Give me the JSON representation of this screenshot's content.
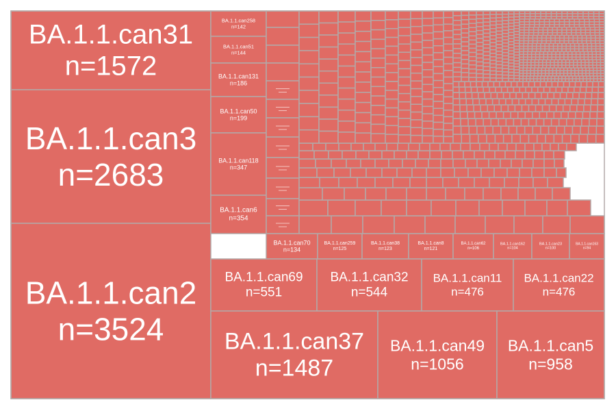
{
  "chart_data": {
    "type": "treemap",
    "title": "",
    "colors": {
      "tile": "#e06b64",
      "border": "#b2a9a8",
      "label": "#ffffff"
    },
    "tiles": [
      {
        "label": "BA.1.1.can31",
        "n": "n=1572",
        "value": 1572
      },
      {
        "label": "BA.1.1.can3",
        "n": "n=2683",
        "value": 2683
      },
      {
        "label": "BA.1.1.can2",
        "n": "n=3524",
        "value": 3524
      },
      {
        "label": "BA.1.1.can258",
        "n": "n=142",
        "value": 142
      },
      {
        "label": "BA.1.1.can51",
        "n": "n=144",
        "value": 144
      },
      {
        "label": "BA.1.1.can131",
        "n": "n=186",
        "value": 186
      },
      {
        "label": "BA.1.1.can50",
        "n": "n=199",
        "value": 199
      },
      {
        "label": "BA.1.1.can118",
        "n": "n=347",
        "value": 347
      },
      {
        "label": "BA.1.1.can6",
        "n": "n=354",
        "value": 354
      },
      {
        "label": "BA.1.1.can70",
        "n": "n=134",
        "value": 134
      },
      {
        "label": "BA.1.1.can259",
        "n": "n=125",
        "value": 125
      },
      {
        "label": "BA.1.1.can38",
        "n": "n=123",
        "value": 123
      },
      {
        "label": "BA.1.1.can8",
        "n": "n=121",
        "value": 121
      },
      {
        "label": "BA.1.1.can62",
        "n": "n=106",
        "value": 106
      },
      {
        "label": "BA.1.1.can162",
        "n": "n=104",
        "value": 104
      },
      {
        "label": "BA.1.1.can23",
        "n": "n=100",
        "value": 100
      },
      {
        "label": "BA.1.1.can163",
        "n": "n=94",
        "value": 94
      },
      {
        "label": "BA.1.1.can69",
        "n": "n=551",
        "value": 551
      },
      {
        "label": "BA.1.1.can32",
        "n": "n=544",
        "value": 544
      },
      {
        "label": "BA.1.1.can11",
        "n": "n=476",
        "value": 476
      },
      {
        "label": "BA.1.1.can22",
        "n": "n=476",
        "value": 476
      },
      {
        "label": "BA.1.1.can37",
        "n": "n=1487",
        "value": 1487
      },
      {
        "label": "BA.1.1.can49",
        "n": "n=1056",
        "value": 1056
      },
      {
        "label": "BA.1.1.can5",
        "n": "n=958",
        "value": 958
      }
    ]
  }
}
